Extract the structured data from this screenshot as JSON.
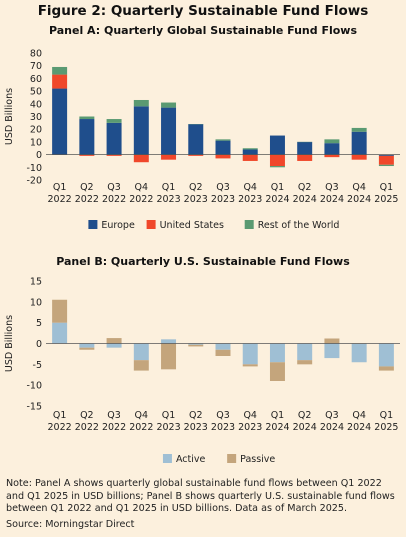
{
  "figure_title": "Figure 2: Quarterly Sustainable Fund Flows",
  "note": "Note: Panel A shows quarterly global sustainable fund flows between Q1 2022 and Q1 2025 in USD billions; Panel B shows quarterly U.S. sustainable fund flows between Q1 2022 and Q1 2025 in USD billions. Data as of March 2025.",
  "source": "Source: Morningstar Direct",
  "chart_data": [
    {
      "type": "bar",
      "stacked": true,
      "title": "Panel A: Quarterly Global Sustainable Fund Flows",
      "ylabel": "USD Billions",
      "ylim": [
        -20,
        80
      ],
      "yticks": [
        -20,
        -10,
        0,
        10,
        20,
        30,
        40,
        50,
        60,
        70,
        80
      ],
      "categories": [
        [
          "Q1",
          "2022"
        ],
        [
          "Q2",
          "2022"
        ],
        [
          "Q3",
          "2022"
        ],
        [
          "Q4",
          "2022"
        ],
        [
          "Q1",
          "2023"
        ],
        [
          "Q2",
          "2023"
        ],
        [
          "Q3",
          "2023"
        ],
        [
          "Q4",
          "2023"
        ],
        [
          "Q1",
          "2024"
        ],
        [
          "Q2",
          "2024"
        ],
        [
          "Q3",
          "2024"
        ],
        [
          "Q4",
          "2024"
        ],
        [
          "Q1",
          "2025"
        ]
      ],
      "legend_position": "bottom",
      "series": [
        {
          "name": "Europe",
          "color": "#1f4e8c",
          "values": [
            52,
            28,
            25,
            38,
            37,
            24,
            11,
            4,
            15,
            10,
            9,
            18,
            -1
          ]
        },
        {
          "name": "United States",
          "color": "#f0472a",
          "values": [
            11,
            -1,
            -1,
            -6,
            -4,
            -1,
            -3,
            -5,
            -9,
            -5,
            -2,
            -4,
            -7
          ]
        },
        {
          "name": "Rest of the World",
          "color": "#5a9a72",
          "values": [
            6,
            2,
            3,
            5,
            4,
            0,
            1,
            1,
            -1,
            0,
            3,
            3,
            -1
          ]
        }
      ]
    },
    {
      "type": "bar",
      "stacked": true,
      "title": "Panel B: Quarterly U.S. Sustainable Fund Flows",
      "ylabel": "USD Billions",
      "ylim": [
        -15,
        15
      ],
      "yticks": [
        -15,
        -10,
        -5,
        0,
        5,
        10,
        15
      ],
      "categories": [
        [
          "Q1",
          "2022"
        ],
        [
          "Q2",
          "2022"
        ],
        [
          "Q3",
          "2022"
        ],
        [
          "Q4",
          "2022"
        ],
        [
          "Q1",
          "2023"
        ],
        [
          "Q2",
          "2023"
        ],
        [
          "Q3",
          "2023"
        ],
        [
          "Q4",
          "2023"
        ],
        [
          "Q1",
          "2024"
        ],
        [
          "Q2",
          "2024"
        ],
        [
          "Q3",
          "2024"
        ],
        [
          "Q4",
          "2024"
        ],
        [
          "Q1",
          "2025"
        ]
      ],
      "legend_position": "bottom",
      "series": [
        {
          "name": "Active",
          "color": "#9fbfd4",
          "values": [
            5,
            -1,
            -1,
            -4,
            1,
            -0.3,
            -1.5,
            -5,
            -4.5,
            -4,
            -3.5,
            -4.5,
            -5.5
          ]
        },
        {
          "name": "Passive",
          "color": "#c4a57c",
          "values": [
            5.5,
            -0.5,
            1.3,
            -2.5,
            -6.2,
            -0.4,
            -1.5,
            -0.5,
            -4.5,
            -1,
            1.2,
            0,
            -1
          ]
        }
      ]
    }
  ]
}
